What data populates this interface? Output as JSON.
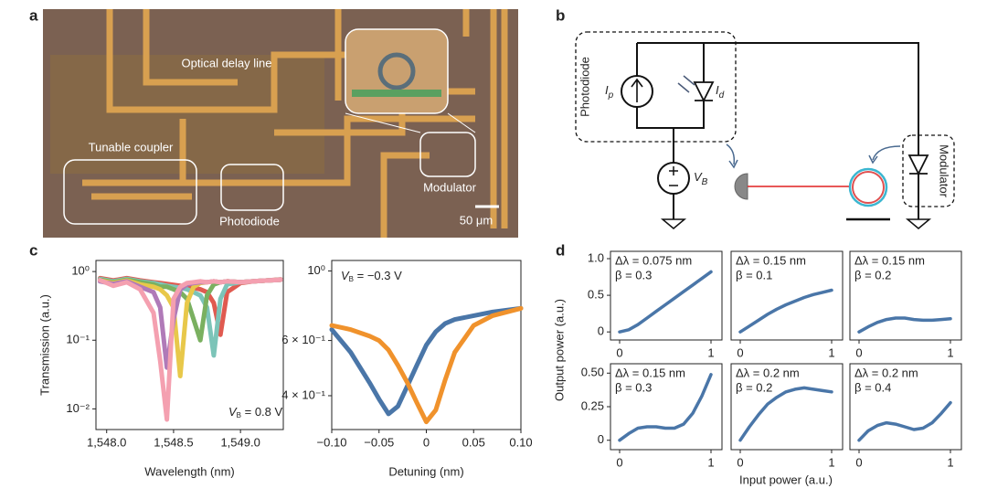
{
  "panel_labels": [
    "a",
    "b",
    "c",
    "d"
  ],
  "micrograph": {
    "labels": [
      "Optical delay line",
      "Tunable coupler",
      "Photodiode",
      "Modulator"
    ],
    "scale_bar": "50 μm"
  },
  "circuit": {
    "photodiode_label": "Photodiode",
    "modulator_label": "Modulator",
    "photocurrent": [
      "I",
      "p"
    ],
    "dark_current": [
      "I",
      "d"
    ],
    "bias": [
      "V",
      "B"
    ]
  },
  "panel_d": {
    "y_label": "Output power (a.u.)",
    "x_label": "Input power (a.u.)"
  },
  "chart_data": [
    {
      "type": "line",
      "log_y": true,
      "y_label": "Transmission (a.u.)",
      "x_label": "Wavelength (nm)",
      "annotation": {
        "symbol": "V",
        "sub": "B",
        "rest": " = 0.8 V"
      },
      "xlim": [
        1547.92,
        1549.32
      ],
      "xticks": [
        {
          "value": 1548,
          "label": "1,548.0"
        },
        {
          "value": 1548.5,
          "label": "1,548.5"
        },
        {
          "value": 1549,
          "label": "1,549.0"
        }
      ],
      "ylim": [
        0.005,
        1.45
      ],
      "yticks": [
        {
          "value": 1,
          "label": "10⁰"
        },
        {
          "value": 0.1,
          "label": "10⁻¹"
        },
        {
          "value": 0.01,
          "label": "10⁻²"
        }
      ],
      "x": [
        1547.95,
        1548.05,
        1548.15,
        1548.25,
        1548.35,
        1548.4,
        1548.45,
        1548.5,
        1548.55,
        1548.6,
        1548.65,
        1548.7,
        1548.75,
        1548.8,
        1548.85,
        1548.9,
        1549.0,
        1549.1,
        1549.2,
        1549.3
      ],
      "series": [
        {
          "color": "#e05a50",
          "values": [
            0.8,
            0.74,
            0.8,
            0.74,
            0.7,
            0.68,
            0.66,
            0.64,
            0.62,
            0.6,
            0.58,
            0.55,
            0.5,
            0.35,
            0.12,
            0.5,
            0.68,
            0.72,
            0.74,
            0.77
          ]
        },
        {
          "color": "#7cc4b8",
          "values": [
            0.78,
            0.72,
            0.78,
            0.72,
            0.68,
            0.65,
            0.62,
            0.6,
            0.58,
            0.55,
            0.5,
            0.45,
            0.3,
            0.06,
            0.4,
            0.65,
            0.7,
            0.72,
            0.74,
            0.76
          ]
        },
        {
          "color": "#7ab060",
          "values": [
            0.76,
            0.7,
            0.76,
            0.7,
            0.65,
            0.6,
            0.6,
            0.55,
            0.5,
            0.4,
            0.2,
            0.1,
            0.45,
            0.65,
            0.7,
            0.72,
            0.7,
            0.72,
            0.74,
            0.76
          ]
        },
        {
          "color": "#e8c84a",
          "values": [
            0.74,
            0.68,
            0.74,
            0.65,
            0.6,
            0.55,
            0.45,
            0.3,
            0.03,
            0.35,
            0.6,
            0.68,
            0.7,
            0.72,
            0.7,
            0.72,
            0.7,
            0.72,
            0.74,
            0.76
          ]
        },
        {
          "color": "#b07ab8",
          "values": [
            0.72,
            0.66,
            0.72,
            0.6,
            0.5,
            0.3,
            0.04,
            0.2,
            0.55,
            0.65,
            0.68,
            0.7,
            0.7,
            0.72,
            0.7,
            0.72,
            0.7,
            0.72,
            0.74,
            0.76
          ]
        },
        {
          "color": "#f4a0b0",
          "values": [
            0.75,
            0.62,
            0.7,
            0.55,
            0.25,
            0.05,
            0.007,
            0.4,
            0.6,
            0.68,
            0.7,
            0.72,
            0.7,
            0.72,
            0.7,
            0.72,
            0.7,
            0.72,
            0.74,
            0.76
          ]
        }
      ]
    },
    {
      "type": "line",
      "log_y": true,
      "x_label": "Detuning (nm)",
      "annotation": {
        "symbol": "V",
        "sub": "B",
        "rest": " = −0.3 V"
      },
      "xlim": [
        -0.1,
        0.1
      ],
      "xticks": [
        {
          "value": -0.1,
          "label": "−0.10"
        },
        {
          "value": -0.05,
          "label": "−0.05"
        },
        0,
        0.05,
        {
          "value": 0.1,
          "label": "0.10"
        }
      ],
      "ylim": [
        0.312,
        1.08
      ],
      "yticks": [
        {
          "value": 1,
          "label": "10⁰"
        },
        {
          "value": 0.6,
          "label": "6 × 10⁻¹"
        },
        {
          "value": 0.4,
          "label": "4 × 10⁻¹"
        }
      ],
      "x": [
        -0.1,
        -0.08,
        -0.06,
        -0.05,
        -0.04,
        -0.03,
        -0.02,
        -0.01,
        0,
        0.01,
        0.02,
        0.03,
        0.05,
        0.07,
        0.1
      ],
      "series": [
        {
          "color": "#4a76a8",
          "values": [
            0.65,
            0.55,
            0.44,
            0.39,
            0.35,
            0.37,
            0.43,
            0.5,
            0.58,
            0.64,
            0.68,
            0.7,
            0.72,
            0.74,
            0.76
          ]
        },
        {
          "color": "#f0922c",
          "values": [
            0.67,
            0.65,
            0.62,
            0.6,
            0.56,
            0.5,
            0.44,
            0.38,
            0.33,
            0.36,
            0.45,
            0.55,
            0.67,
            0.72,
            0.76
          ]
        }
      ]
    },
    {
      "type": "line",
      "annotations": [
        "Δλ = 0.075 nm",
        "β = 0.3"
      ],
      "xlim": [
        -0.1,
        1.12
      ],
      "xticks": [
        0,
        1
      ],
      "ylim": [
        -0.11,
        1.1
      ],
      "yticks": [
        0,
        0.5,
        {
          "value": 1,
          "label": "1.0"
        }
      ],
      "color": "#4a76a8",
      "x": [
        0,
        0.1,
        0.2,
        0.3,
        0.4,
        0.5,
        0.6,
        0.7,
        0.8,
        0.9,
        1
      ],
      "values": [
        0,
        0.03,
        0.1,
        0.19,
        0.28,
        0.37,
        0.46,
        0.55,
        0.64,
        0.73,
        0.82
      ]
    },
    {
      "type": "line",
      "annotations": [
        "Δλ = 0.15 nm",
        "β = 0.1"
      ],
      "xlim": [
        -0.1,
        1.12
      ],
      "xticks": [
        0,
        1
      ],
      "ylim": [
        -0.11,
        1.1
      ],
      "color": "#4a76a8",
      "x": [
        0,
        0.1,
        0.2,
        0.3,
        0.4,
        0.5,
        0.6,
        0.7,
        0.8,
        0.9,
        1
      ],
      "values": [
        0,
        0.08,
        0.16,
        0.24,
        0.31,
        0.37,
        0.42,
        0.47,
        0.51,
        0.54,
        0.57
      ]
    },
    {
      "type": "line",
      "annotations": [
        "Δλ = 0.15 nm",
        "β = 0.2"
      ],
      "xlim": [
        -0.1,
        1.12
      ],
      "xticks": [
        0,
        1
      ],
      "ylim": [
        -0.11,
        1.1
      ],
      "color": "#4a76a8",
      "x": [
        0,
        0.1,
        0.2,
        0.3,
        0.4,
        0.5,
        0.6,
        0.7,
        0.8,
        0.9,
        1
      ],
      "values": [
        0,
        0.07,
        0.13,
        0.17,
        0.19,
        0.19,
        0.17,
        0.16,
        0.16,
        0.17,
        0.18
      ]
    },
    {
      "type": "line",
      "annotations": [
        "Δλ = 0.15 nm",
        "β = 0.3"
      ],
      "xlim": [
        -0.1,
        1.12
      ],
      "xticks": [
        0,
        1
      ],
      "ylim": [
        -0.07,
        0.57
      ],
      "yticks": [
        0,
        0.25,
        {
          "value": 0.5,
          "label": "0.50"
        }
      ],
      "color": "#4a76a8",
      "x": [
        0,
        0.1,
        0.2,
        0.3,
        0.4,
        0.5,
        0.6,
        0.7,
        0.8,
        0.9,
        1
      ],
      "values": [
        0,
        0.05,
        0.09,
        0.1,
        0.1,
        0.09,
        0.09,
        0.12,
        0.2,
        0.33,
        0.49
      ]
    },
    {
      "type": "line",
      "annotations": [
        "Δλ = 0.2 nm",
        "β = 0.2"
      ],
      "xlim": [
        -0.1,
        1.12
      ],
      "xticks": [
        0,
        1
      ],
      "ylim": [
        -0.07,
        0.57
      ],
      "color": "#4a76a8",
      "x": [
        0,
        0.1,
        0.2,
        0.3,
        0.4,
        0.5,
        0.6,
        0.7,
        0.8,
        0.9,
        1
      ],
      "values": [
        0,
        0.1,
        0.19,
        0.27,
        0.32,
        0.36,
        0.38,
        0.39,
        0.38,
        0.37,
        0.36
      ]
    },
    {
      "type": "line",
      "annotations": [
        "Δλ = 0.2 nm",
        "β = 0.4"
      ],
      "xlim": [
        -0.1,
        1.12
      ],
      "xticks": [
        0,
        1
      ],
      "ylim": [
        -0.07,
        0.57
      ],
      "color": "#4a76a8",
      "x": [
        0,
        0.1,
        0.2,
        0.3,
        0.4,
        0.5,
        0.6,
        0.7,
        0.8,
        0.9,
        1
      ],
      "values": [
        0,
        0.07,
        0.11,
        0.13,
        0.12,
        0.1,
        0.08,
        0.09,
        0.13,
        0.2,
        0.28
      ]
    }
  ]
}
